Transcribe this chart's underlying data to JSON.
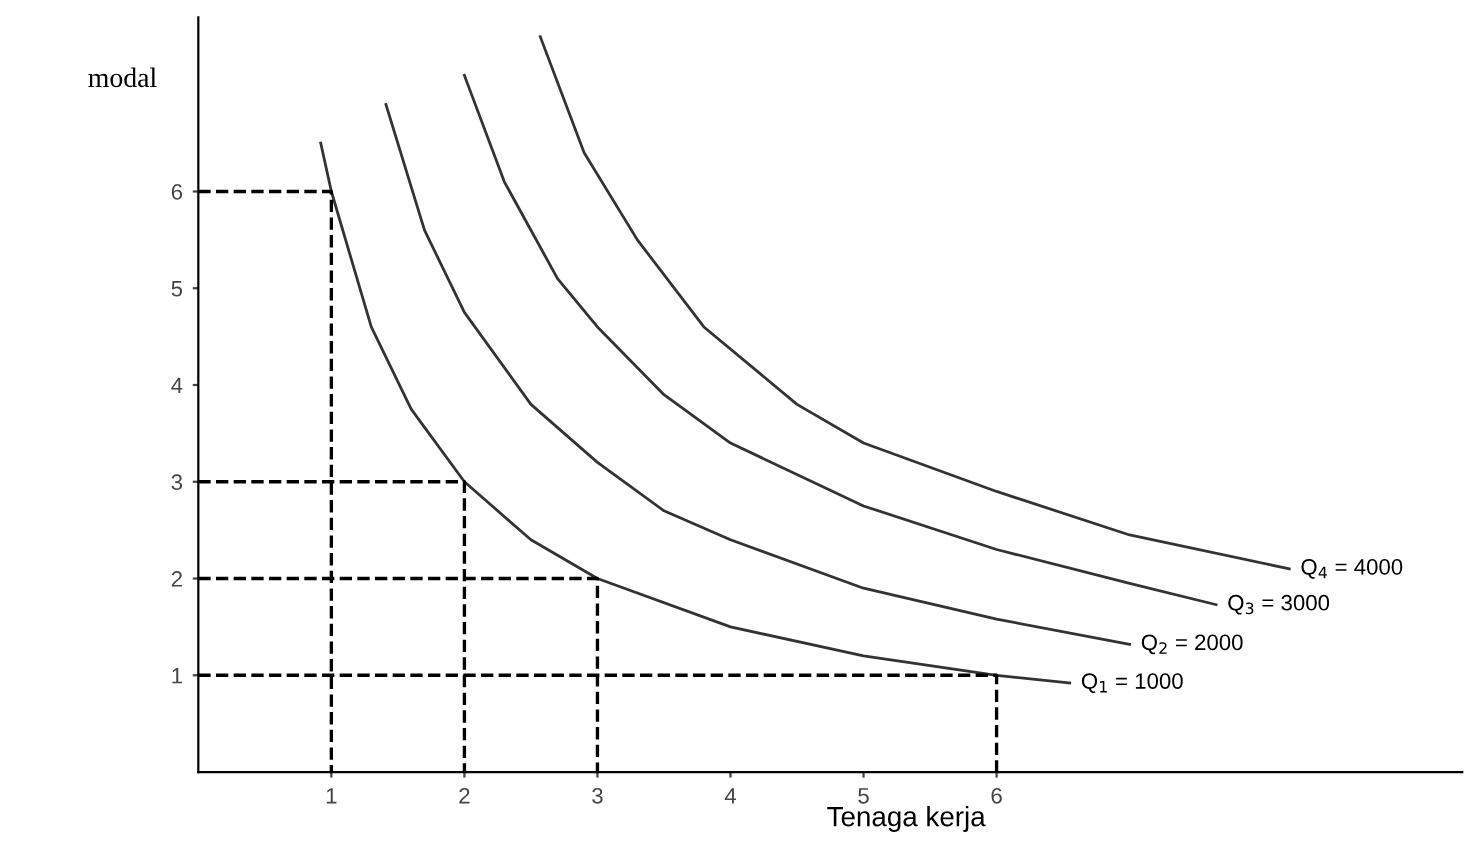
{
  "chart_data": {
    "type": "line",
    "xlabel": "Tenaga kerja",
    "ylabel": "modal",
    "xlim": [
      0,
      9.5
    ],
    "ylim": [
      0,
      7.8
    ],
    "xticks": [
      1,
      2,
      3,
      4,
      5,
      6
    ],
    "yticks": [
      1,
      2,
      3,
      4,
      5,
      6
    ],
    "grid": false,
    "legend": false,
    "marker": "none",
    "series": [
      {
        "name": "Q$_{1}$ = 1000",
        "color": "#333333",
        "line_style": "solid",
        "x": [
          0.92,
          1,
          1.3,
          1.6,
          2,
          2.5,
          3,
          4,
          5,
          6,
          6.55
        ],
        "values": [
          6.5,
          6.0,
          4.6,
          3.75,
          3.0,
          2.4,
          2.0,
          1.5,
          1.2,
          1.0,
          0.92
        ]
      },
      {
        "name": "Q$_{2}$ = 2000",
        "color": "#333333",
        "line_style": "solid",
        "x": [
          1.41,
          1.7,
          2,
          2.5,
          3,
          3.5,
          4,
          5,
          6,
          7.0
        ],
        "values": [
          6.9,
          5.6,
          4.75,
          3.8,
          3.2,
          2.7,
          2.4,
          1.9,
          1.58,
          1.32
        ]
      },
      {
        "name": "Q$_{3}$ = 3000",
        "color": "#333333",
        "line_style": "solid",
        "x": [
          2.0,
          2.3,
          2.7,
          3,
          3.5,
          4,
          5,
          6,
          7,
          7.65
        ],
        "values": [
          7.2,
          6.1,
          5.1,
          4.6,
          3.9,
          3.4,
          2.75,
          2.3,
          1.95,
          1.73
        ]
      },
      {
        "name": "Q$_{4}$ = 4000",
        "color": "#333333",
        "line_style": "solid",
        "x": [
          2.57,
          2.9,
          3.3,
          3.8,
          4.5,
          5,
          6,
          7,
          8.2
        ],
        "values": [
          7.6,
          6.4,
          5.5,
          4.6,
          3.8,
          3.4,
          2.9,
          2.45,
          2.1
        ]
      },
      {
        "color": "#000000",
        "line_style": "dashed",
        "x": [
          0,
          1,
          1
        ],
        "values": [
          6,
          6,
          0
        ]
      },
      {
        "color": "#000000",
        "line_style": "dashed",
        "x": [
          0,
          2,
          2
        ],
        "values": [
          3,
          3,
          0
        ]
      },
      {
        "color": "#000000",
        "line_style": "dashed",
        "x": [
          0,
          3,
          3
        ],
        "values": [
          2,
          2,
          0
        ]
      },
      {
        "color": "#000000",
        "line_style": "dashed",
        "x": [
          0,
          6,
          6
        ],
        "values": [
          1,
          1,
          0
        ]
      }
    ]
  }
}
